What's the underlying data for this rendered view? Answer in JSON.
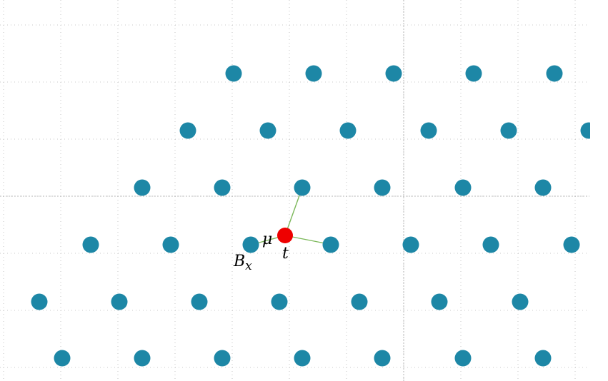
{
  "colors": {
    "lattice": "#1d87a6",
    "defect": "#ee0000",
    "bond": "#7cb85a",
    "grid": "#b8b8b8",
    "background": "#ffffff"
  },
  "lattice_rows": [
    [
      327,
      439,
      551,
      663,
      776
    ],
    [
      263,
      375,
      487,
      600,
      712,
      824
    ],
    [
      199,
      311,
      423,
      535,
      648,
      760
    ],
    [
      127,
      239,
      351,
      463,
      575,
      687,
      800
    ],
    [
      55,
      167,
      279,
      391,
      503,
      615,
      728
    ],
    [
      87,
      199,
      311,
      423,
      535,
      648,
      760
    ]
  ],
  "labels": {
    "mu": "μ",
    "t": "t",
    "Bx_base": "B",
    "Bx_sub": "x"
  }
}
